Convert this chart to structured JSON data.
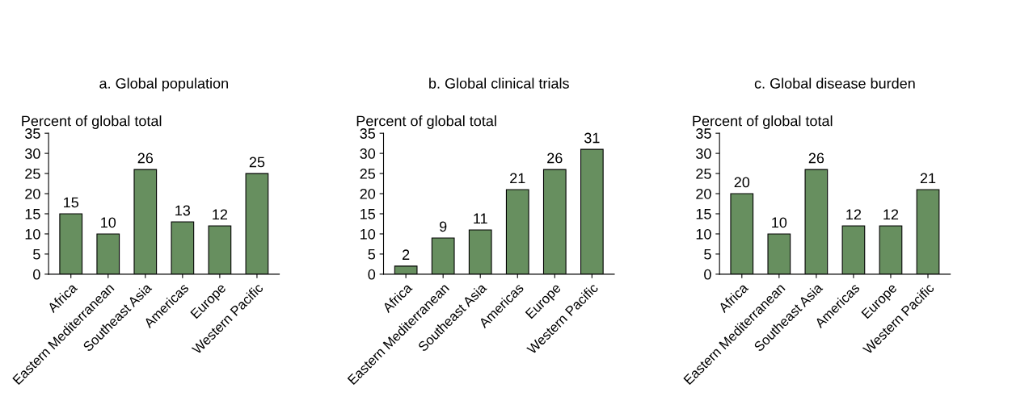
{
  "chart_data": [
    {
      "type": "bar",
      "title": "a. Global population",
      "ylabel": "Percent of global total",
      "categories": [
        "Africa",
        "Eastern Mediterranean",
        "Southeast Asia",
        "Americas",
        "Europe",
        "Western Pacific"
      ],
      "values": [
        15,
        10,
        26,
        13,
        12,
        25
      ],
      "color": "#678f5f",
      "ylim": [
        0,
        35
      ],
      "yticks": [
        0,
        5,
        10,
        15,
        20,
        25,
        30,
        35
      ],
      "data_labels": true
    },
    {
      "type": "bar",
      "title": "b. Global clinical trials",
      "ylabel": "Percent of global total",
      "categories": [
        "Africa",
        "Eastern Mediterranean",
        "Southeast Asia",
        "Americas",
        "Europe",
        "Western Pacific"
      ],
      "values": [
        2,
        9,
        11,
        21,
        26,
        31
      ],
      "color": "#678f5f",
      "ylim": [
        0,
        35
      ],
      "yticks": [
        0,
        5,
        10,
        15,
        20,
        25,
        30,
        35
      ],
      "data_labels": true
    },
    {
      "type": "bar",
      "title": "c. Global disease burden",
      "ylabel": "Percent of global total",
      "categories": [
        "Africa",
        "Eastern Mediterranean",
        "Southeast Asia",
        "Americas",
        "Europe",
        "Western Pacific"
      ],
      "values": [
        20,
        10,
        26,
        12,
        12,
        21
      ],
      "color": "#678f5f",
      "ylim": [
        0,
        35
      ],
      "yticks": [
        0,
        5,
        10,
        15,
        20,
        25,
        30,
        35
      ],
      "data_labels": true
    }
  ]
}
